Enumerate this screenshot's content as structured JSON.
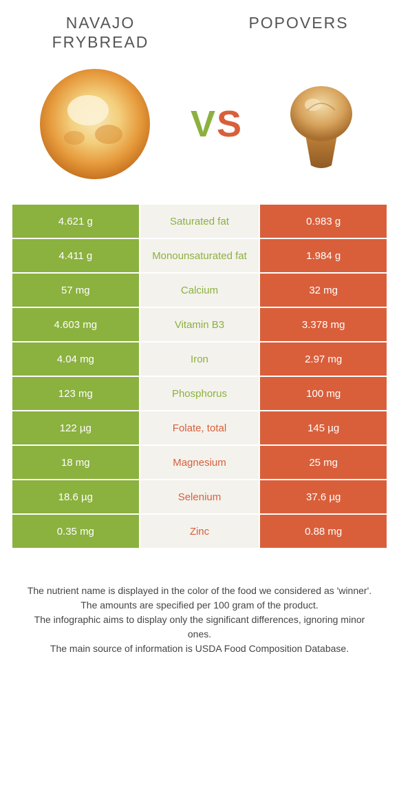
{
  "colors": {
    "green": "#8bb13f",
    "orange": "#d95f3b",
    "mid_bg": "#f4f2ed",
    "page_bg": "#ffffff",
    "title_text": "#555555",
    "footer_text": "#444444"
  },
  "food_left": {
    "title": "Navajo frybread",
    "image": "frybread"
  },
  "food_right": {
    "title": "Popovers",
    "image": "popover"
  },
  "vs": {
    "v": "V",
    "s": "S"
  },
  "nutrients": [
    {
      "name": "Saturated fat",
      "left": "4.621 g",
      "right": "0.983 g",
      "winner": "left"
    },
    {
      "name": "Monounsaturated fat",
      "left": "4.411 g",
      "right": "1.984 g",
      "winner": "left"
    },
    {
      "name": "Calcium",
      "left": "57 mg",
      "right": "32 mg",
      "winner": "left"
    },
    {
      "name": "Vitamin B3",
      "left": "4.603 mg",
      "right": "3.378 mg",
      "winner": "left"
    },
    {
      "name": "Iron",
      "left": "4.04 mg",
      "right": "2.97 mg",
      "winner": "left"
    },
    {
      "name": "Phosphorus",
      "left": "123 mg",
      "right": "100 mg",
      "winner": "left"
    },
    {
      "name": "Folate, total",
      "left": "122 µg",
      "right": "145 µg",
      "winner": "right"
    },
    {
      "name": "Magnesium",
      "left": "18 mg",
      "right": "25 mg",
      "winner": "right"
    },
    {
      "name": "Selenium",
      "left": "18.6 µg",
      "right": "37.6 µg",
      "winner": "right"
    },
    {
      "name": "Zinc",
      "left": "0.35 mg",
      "right": "0.88 mg",
      "winner": "right"
    }
  ],
  "footer_lines": [
    "The nutrient name is displayed in the color of the food we considered as 'winner'.",
    "The amounts are specified per 100 gram of the product.",
    "The infographic aims to display only the significant differences, ignoring minor ones.",
    "The main source of information is USDA Food Composition Database."
  ]
}
